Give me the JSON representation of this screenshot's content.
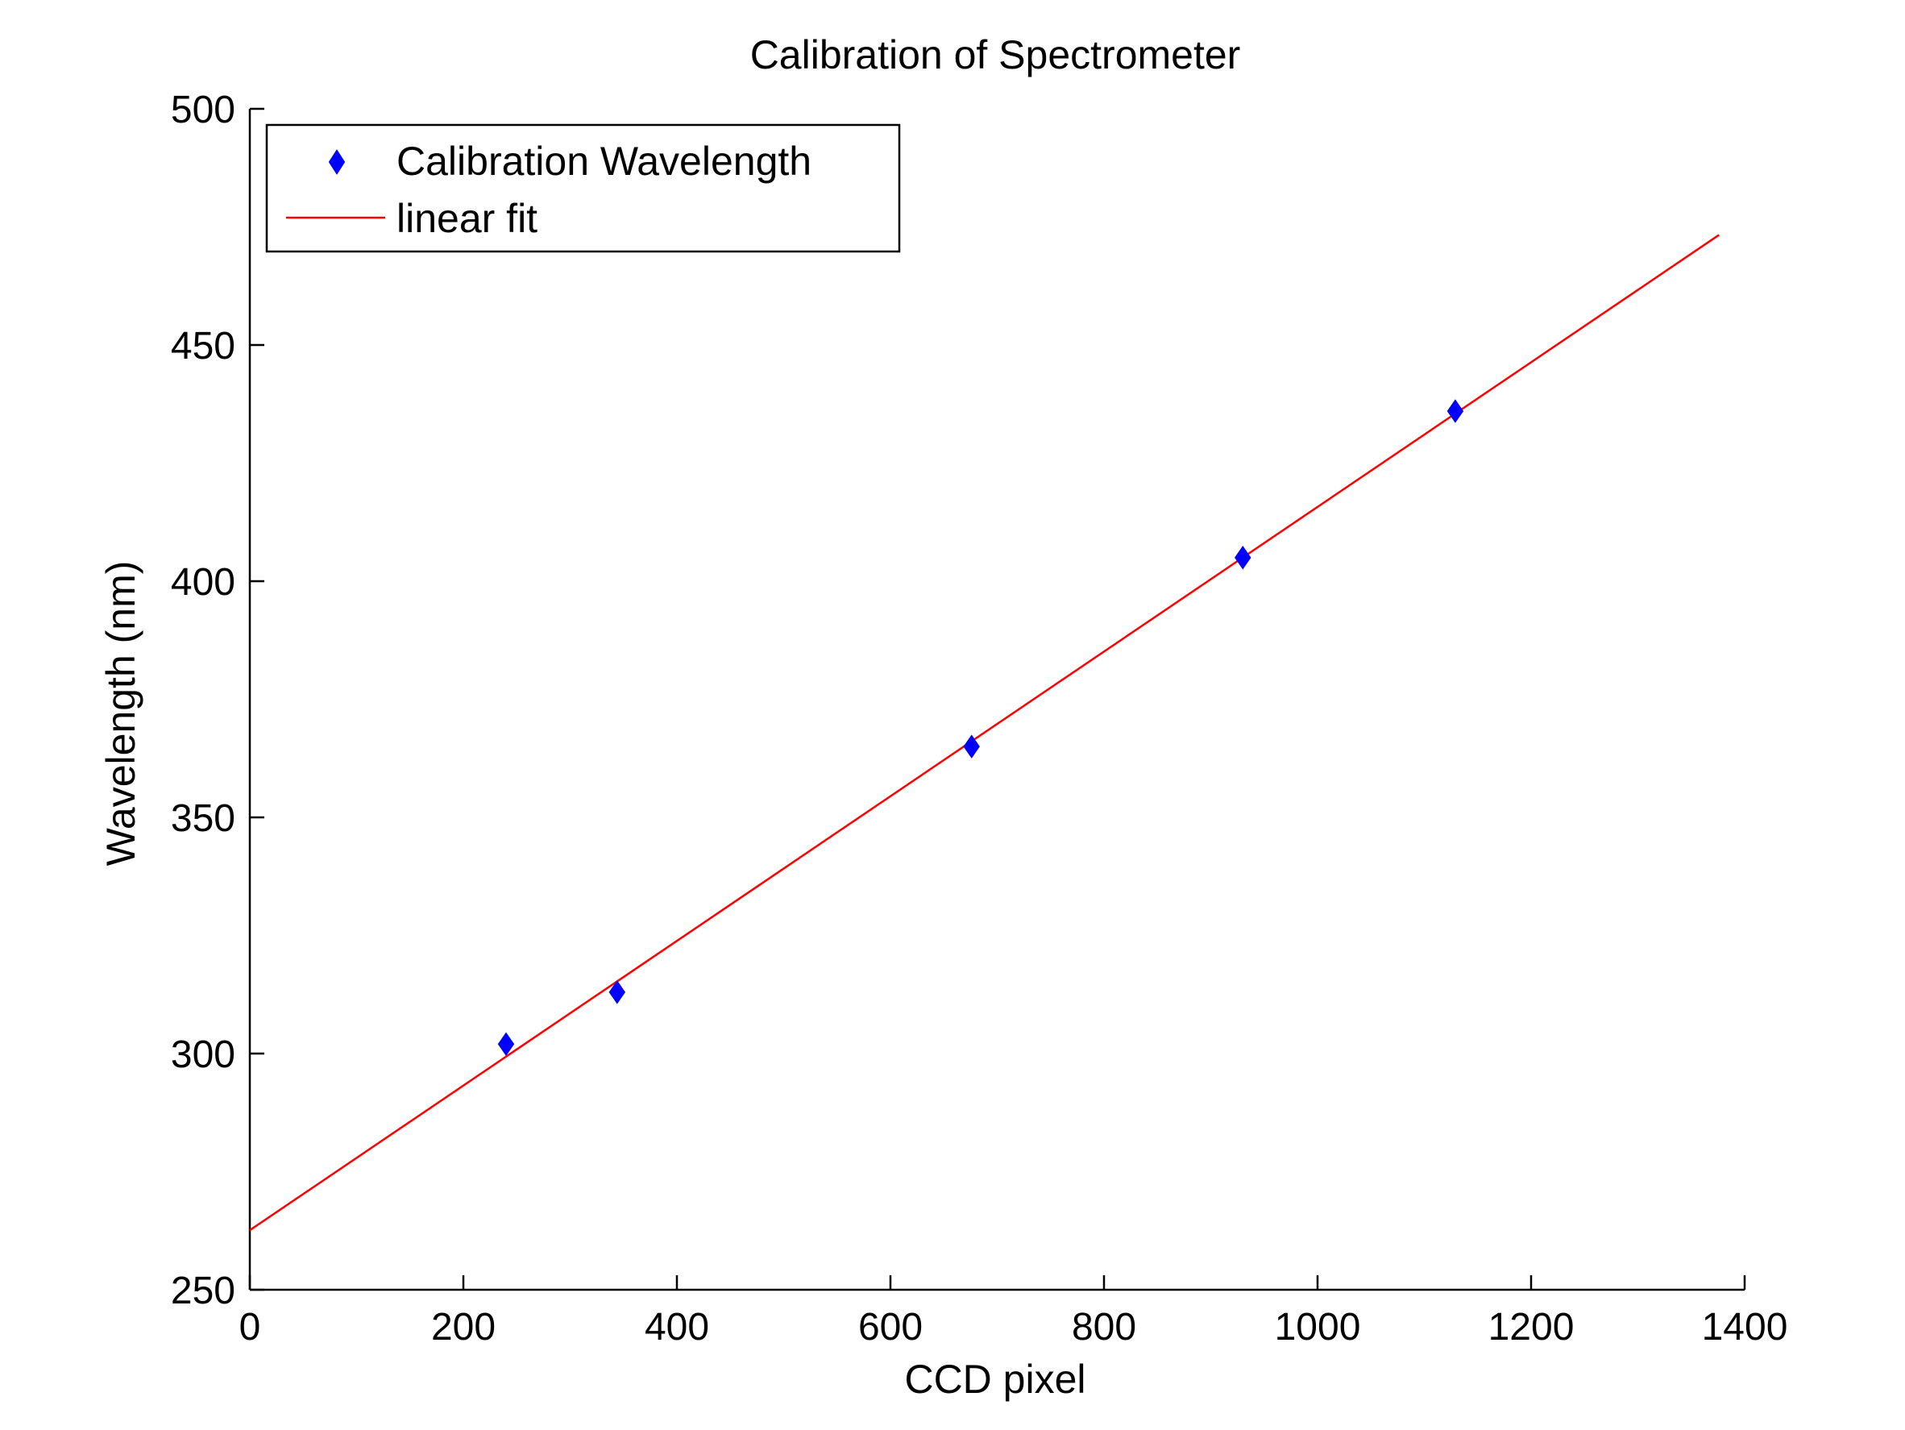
{
  "chart_data": {
    "type": "scatter",
    "title": "Calibration of Spectrometer",
    "xlabel": "CCD pixel",
    "ylabel": "Wavelength (nm)",
    "xlim": [
      0,
      1400
    ],
    "ylim": [
      250,
      500
    ],
    "xticks": [
      "0",
      "200",
      "400",
      "600",
      "800",
      "1000",
      "1200",
      "1400"
    ],
    "yticks": [
      "250",
      "300",
      "350",
      "400",
      "450",
      "500"
    ],
    "grid": false,
    "legend_position": "top-left",
    "series": [
      {
        "name": "Calibration Wavelength",
        "kind": "markers",
        "marker": "diamond",
        "color": "#0000ff",
        "x": [
          240,
          344,
          676,
          930,
          1129
        ],
        "y": [
          302,
          313,
          365,
          405,
          436
        ]
      },
      {
        "name": "linear fit",
        "kind": "line",
        "color": "#ff0000",
        "x": [
          0,
          1376
        ],
        "y": [
          262.6,
          473.3
        ]
      }
    ]
  }
}
